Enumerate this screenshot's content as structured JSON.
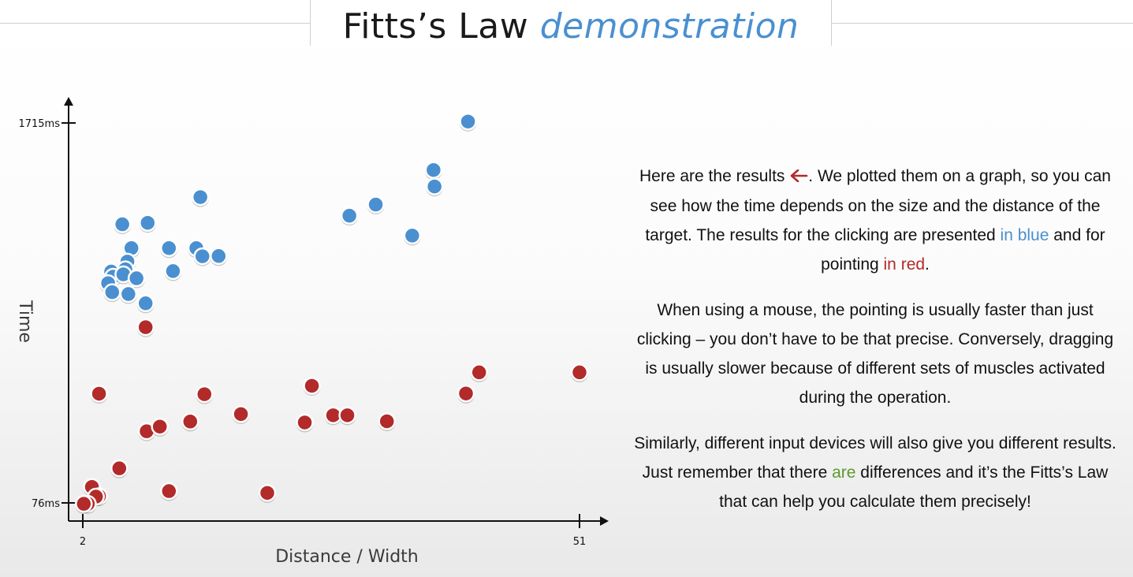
{
  "title": {
    "main": "Fitts’s Law",
    "accent": "demonstration"
  },
  "colors": {
    "clicking": "#4a90d0",
    "pointing": "#b22a2a",
    "accent": "#4a90d0",
    "green": "#5c9a2e",
    "red_text": "#b22a2a"
  },
  "chart_data": {
    "type": "scatter",
    "xlabel": "Distance / Width",
    "ylabel": "Time",
    "x_ticks": [
      {
        "value": 2,
        "label": "2"
      },
      {
        "value": 51,
        "label": "51"
      }
    ],
    "y_ticks": [
      {
        "value": 76,
        "label": "76ms"
      },
      {
        "value": 1715,
        "label": "1715ms"
      }
    ],
    "xlim": [
      2,
      51
    ],
    "ylim": [
      76,
      1715
    ],
    "series": [
      {
        "color": "#4a90d0",
        "points": [
          [
            40.0,
            1721
          ],
          [
            36.6,
            1512
          ],
          [
            36.7,
            1441
          ],
          [
            13.6,
            1395
          ],
          [
            30.9,
            1363
          ],
          [
            28.3,
            1315
          ],
          [
            5.9,
            1278
          ],
          [
            8.4,
            1284
          ],
          [
            34.5,
            1229
          ],
          [
            13.2,
            1175
          ],
          [
            10.5,
            1175
          ],
          [
            13.8,
            1140
          ],
          [
            15.4,
            1141
          ],
          [
            6.8,
            1175
          ],
          [
            6.4,
            1117
          ],
          [
            10.9,
            1076
          ],
          [
            6.3,
            1075
          ],
          [
            4.8,
            1074
          ],
          [
            5.0,
            1052
          ],
          [
            6.2,
            1084
          ],
          [
            6.0,
            1062
          ],
          [
            4.5,
            1024
          ],
          [
            7.3,
            1045
          ],
          [
            4.9,
            985
          ],
          [
            6.5,
            977
          ],
          [
            8.2,
            937
          ]
        ]
      },
      {
        "color": "#b22a2a",
        "points": [
          [
            8.2,
            834
          ],
          [
            41.1,
            639
          ],
          [
            51.0,
            639
          ],
          [
            3.6,
            547
          ],
          [
            14.0,
            545
          ],
          [
            24.6,
            581
          ],
          [
            39.8,
            548
          ],
          [
            17.6,
            459
          ],
          [
            26.7,
            454
          ],
          [
            28.1,
            454
          ],
          [
            32.0,
            428
          ],
          [
            23.9,
            423
          ],
          [
            12.6,
            427
          ],
          [
            8.3,
            385
          ],
          [
            9.6,
            405
          ],
          [
            5.6,
            225
          ],
          [
            10.5,
            127
          ],
          [
            20.2,
            119
          ],
          [
            2.9,
            145
          ],
          [
            3.6,
            105
          ],
          [
            3.3,
            103
          ],
          [
            2.5,
            72
          ],
          [
            2.1,
            72
          ]
        ]
      }
    ]
  },
  "text": {
    "p1": {
      "a": "Here are the results ",
      "b": ". We plotted them on a graph, so you can see how the time depends on the size and the distance of the target. The results for the clicking are presented ",
      "in_blue": "in blue",
      "c": " and for pointing ",
      "in_red": "in red",
      "d": "."
    },
    "p2": "When using a mouse, the pointing is usually faster than just clicking – you don’t have to be that precise. Conversely, dragging is usually slower because of different sets of muscles activated during the operation.",
    "p3": {
      "a": "Similarly, different input devices will also give you different results. Just remember that there ",
      "are": "are",
      "b": " differences and it’s the Fitts’s Law that can help you calculate them precisely!"
    }
  }
}
